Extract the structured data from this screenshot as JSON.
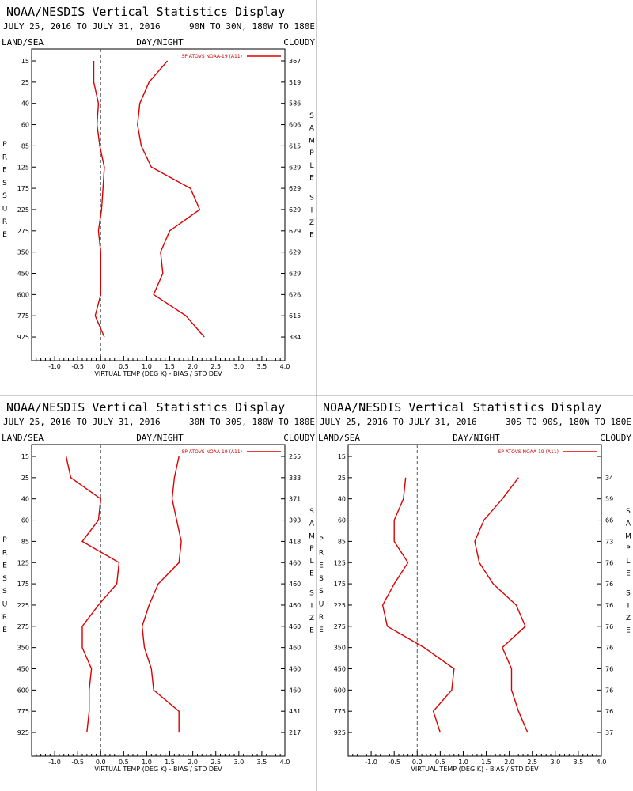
{
  "colors": {
    "series": "#dd0000",
    "axis": "#000000",
    "zero_line": "#555555",
    "divider": "#999999"
  },
  "chart_data": [
    {
      "type": "line",
      "title": "NOAA/NESDIS Vertical Statistics Display",
      "date_range": "JULY 25, 2016 TO JULY 31, 2016",
      "region": "90N TO 30N, 180W TO 180E",
      "corner_labels": {
        "left": "LAND/SEA",
        "center": "DAY/NIGHT",
        "right": "CLOUDY"
      },
      "xlabel": "VIRTUAL TEMP (DEG K) - BIAS / STD DEV",
      "ylabel": "PRESSURE",
      "y2label": "SAMPLE SIZE",
      "xlim": [
        -1.5,
        4.0
      ],
      "x_ticks": [
        "-1.0",
        "-0.5",
        "0.0",
        "0.5",
        "1.0",
        "1.5",
        "2.0",
        "2.5",
        "3.0",
        "3.5",
        "4.0"
      ],
      "pressure_levels": [
        15,
        25,
        40,
        60,
        85,
        125,
        175,
        225,
        275,
        350,
        450,
        600,
        775,
        925
      ],
      "sample_size": [
        367,
        519,
        586,
        606,
        615,
        629,
        629,
        629,
        629,
        629,
        629,
        626,
        615,
        384
      ],
      "legend": "SP ATOVS NOAA-19 (A11)",
      "series": [
        {
          "name": "bias",
          "values": [
            -0.15,
            -0.15,
            -0.05,
            -0.08,
            -0.02,
            0.08,
            0.05,
            0.02,
            -0.05,
            0.0,
            0.0,
            0.0,
            -0.12,
            0.08
          ]
        },
        {
          "name": "std_dev",
          "values": [
            1.45,
            1.05,
            0.85,
            0.8,
            0.88,
            1.1,
            1.95,
            2.15,
            1.5,
            1.3,
            1.35,
            1.15,
            1.85,
            2.25
          ]
        }
      ]
    },
    {
      "type": "line",
      "title": "NOAA/NESDIS Vertical Statistics Display",
      "date_range": "JULY 25, 2016 TO JULY 31, 2016",
      "region": "30N TO 30S, 180W TO 180E",
      "corner_labels": {
        "left": "LAND/SEA",
        "center": "DAY/NIGHT",
        "right": "CLOUDY"
      },
      "xlabel": "VIRTUAL TEMP (DEG K) - BIAS / STD DEV",
      "ylabel": "PRESSURE",
      "y2label": "SAMPLE SIZE",
      "xlim": [
        -1.5,
        4.0
      ],
      "x_ticks": [
        "-1.0",
        "-0.5",
        "0.0",
        "0.5",
        "1.0",
        "1.5",
        "2.0",
        "2.5",
        "3.0",
        "3.5",
        "4.0"
      ],
      "pressure_levels": [
        15,
        25,
        40,
        60,
        85,
        125,
        175,
        225,
        275,
        350,
        450,
        600,
        775,
        925
      ],
      "sample_size": [
        255,
        333,
        371,
        393,
        418,
        460,
        460,
        460,
        460,
        460,
        460,
        460,
        431,
        217
      ],
      "legend": "SP ATOVS NOAA-19 (A11)",
      "series": [
        {
          "name": "bias",
          "values": [
            -0.75,
            -0.65,
            0.0,
            -0.05,
            -0.4,
            0.4,
            0.35,
            -0.05,
            -0.4,
            -0.4,
            -0.2,
            -0.25,
            -0.25,
            -0.3
          ]
        },
        {
          "name": "std_dev",
          "values": [
            1.7,
            1.6,
            1.55,
            1.65,
            1.75,
            1.7,
            1.25,
            1.05,
            0.9,
            0.95,
            1.1,
            1.15,
            1.7,
            1.7
          ]
        }
      ]
    },
    {
      "type": "line",
      "title": "NOAA/NESDIS Vertical Statistics Display",
      "date_range": "JULY 25, 2016 TO JULY 31, 2016",
      "region": "30S TO 90S, 180W TO 180E",
      "corner_labels": {
        "left": "LAND/SEA",
        "center": "DAY/NIGHT",
        "right": "CLOUDY"
      },
      "xlabel": "VIRTUAL TEMP (DEG K) - BIAS / STD DEV",
      "ylabel": "PRESSURE",
      "y2label": "SAMPLE SIZE",
      "xlim": [
        -1.5,
        4.0
      ],
      "x_ticks": [
        "-1.0",
        "-0.5",
        "0.0",
        "0.5",
        "1.0",
        "1.5",
        "2.0",
        "2.5",
        "3.0",
        "3.5",
        "4.0"
      ],
      "pressure_levels": [
        15,
        25,
        40,
        60,
        85,
        125,
        175,
        225,
        275,
        350,
        450,
        600,
        775,
        925
      ],
      "sample_size": [
        null,
        34,
        59,
        66,
        73,
        76,
        76,
        76,
        76,
        76,
        76,
        76,
        76,
        37
      ],
      "legend": "SP ATOVS NOAA-19 (A11)",
      "series": [
        {
          "name": "bias",
          "values": [
            null,
            -0.25,
            -0.3,
            -0.5,
            -0.5,
            -0.2,
            -0.5,
            -0.75,
            -0.65,
            0.15,
            0.8,
            0.75,
            0.35,
            0.5
          ]
        },
        {
          "name": "std_dev",
          "values": [
            null,
            2.2,
            1.85,
            1.45,
            1.25,
            1.35,
            1.65,
            2.15,
            2.35,
            1.85,
            2.05,
            2.05,
            2.2,
            2.4
          ]
        }
      ]
    }
  ]
}
